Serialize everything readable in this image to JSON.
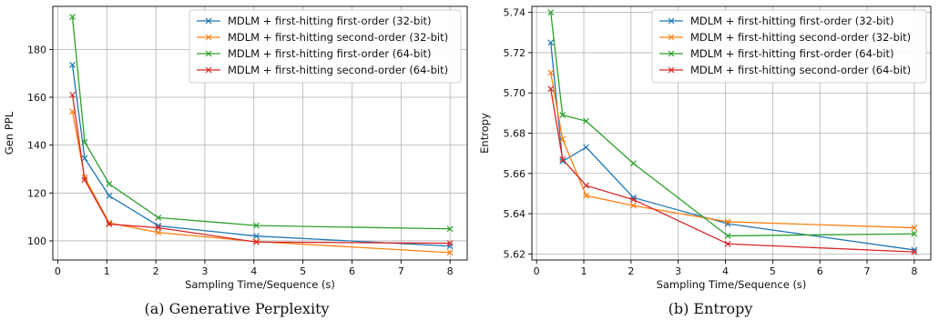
{
  "chart_data": [
    {
      "type": "line",
      "caption": "(a) Generative Perplexity",
      "xlabel": "Sampling Time/Sequence (s)",
      "ylabel": "Gen PPL",
      "xlim": [
        -0.1,
        8.35
      ],
      "ylim": [
        92,
        198
      ],
      "xticks": [
        0,
        1,
        2,
        3,
        4,
        5,
        6,
        7,
        8
      ],
      "yticks": [
        100,
        120,
        140,
        160,
        180
      ],
      "grid": true,
      "legend_position": "top-right",
      "series": [
        {
          "name": "MDLM + first-hitting first-order (32-bit)",
          "color": "#1f77b4",
          "x": [
            0.3,
            0.55,
            1.05,
            2.05,
            4.05,
            8.0
          ],
          "y": [
            173.5,
            134.5,
            118.8,
            106.3,
            102.0,
            97.8
          ]
        },
        {
          "name": "MDLM + first-hitting second-order (32-bit)",
          "color": "#ff7f0e",
          "x": [
            0.3,
            0.55,
            1.05,
            2.05,
            4.05,
            8.0
          ],
          "y": [
            154.0,
            126.5,
            107.5,
            103.5,
            99.7,
            95.1
          ]
        },
        {
          "name": "MDLM + first-hitting first-order (64-bit)",
          "color": "#2ca02c",
          "x": [
            0.3,
            0.55,
            1.05,
            2.05,
            4.05,
            8.0
          ],
          "y": [
            193.6,
            141.3,
            123.8,
            109.7,
            106.4,
            105.0
          ]
        },
        {
          "name": "MDLM + first-hitting second-order (64-bit)",
          "color": "#d62728",
          "x": [
            0.3,
            0.55,
            1.05,
            2.05,
            4.05,
            8.0
          ],
          "y": [
            161.0,
            125.5,
            107.0,
            105.5,
            99.5,
            99.0
          ]
        }
      ]
    },
    {
      "type": "line",
      "caption": "(b) Entropy",
      "xlabel": "Sampling Time/Sequence (s)",
      "ylabel": "Entropy",
      "xlim": [
        -0.1,
        8.35
      ],
      "ylim": [
        5.617,
        5.743
      ],
      "xticks": [
        0,
        1,
        2,
        3,
        4,
        5,
        6,
        7,
        8
      ],
      "yticks": [
        5.62,
        5.64,
        5.66,
        5.68,
        5.7,
        5.72,
        5.74
      ],
      "yticklabels": [
        "5.62",
        "5.64",
        "5.66",
        "5.68",
        "5.70",
        "5.72",
        "5.74"
      ],
      "grid": true,
      "legend_position": "top-right",
      "series": [
        {
          "name": "MDLM + first-hitting first-order (32-bit)",
          "color": "#1f77b4",
          "x": [
            0.3,
            0.55,
            1.05,
            2.05,
            4.05,
            8.0
          ],
          "y": [
            5.725,
            5.666,
            5.673,
            5.648,
            5.635,
            5.622
          ]
        },
        {
          "name": "MDLM + first-hitting second-order (32-bit)",
          "color": "#ff7f0e",
          "x": [
            0.3,
            0.55,
            1.05,
            2.05,
            4.05,
            8.0
          ],
          "y": [
            5.71,
            5.677,
            5.649,
            5.644,
            5.636,
            5.633
          ]
        },
        {
          "name": "MDLM + first-hitting first-order (64-bit)",
          "color": "#2ca02c",
          "x": [
            0.3,
            0.55,
            1.05,
            2.05,
            4.05,
            8.0
          ],
          "y": [
            5.74,
            5.689,
            5.686,
            5.665,
            5.629,
            5.63
          ]
        },
        {
          "name": "MDLM + first-hitting second-order (64-bit)",
          "color": "#d62728",
          "x": [
            0.3,
            0.55,
            1.05,
            2.05,
            4.05,
            8.0
          ],
          "y": [
            5.702,
            5.667,
            5.654,
            5.647,
            5.625,
            5.621
          ]
        }
      ]
    }
  ]
}
